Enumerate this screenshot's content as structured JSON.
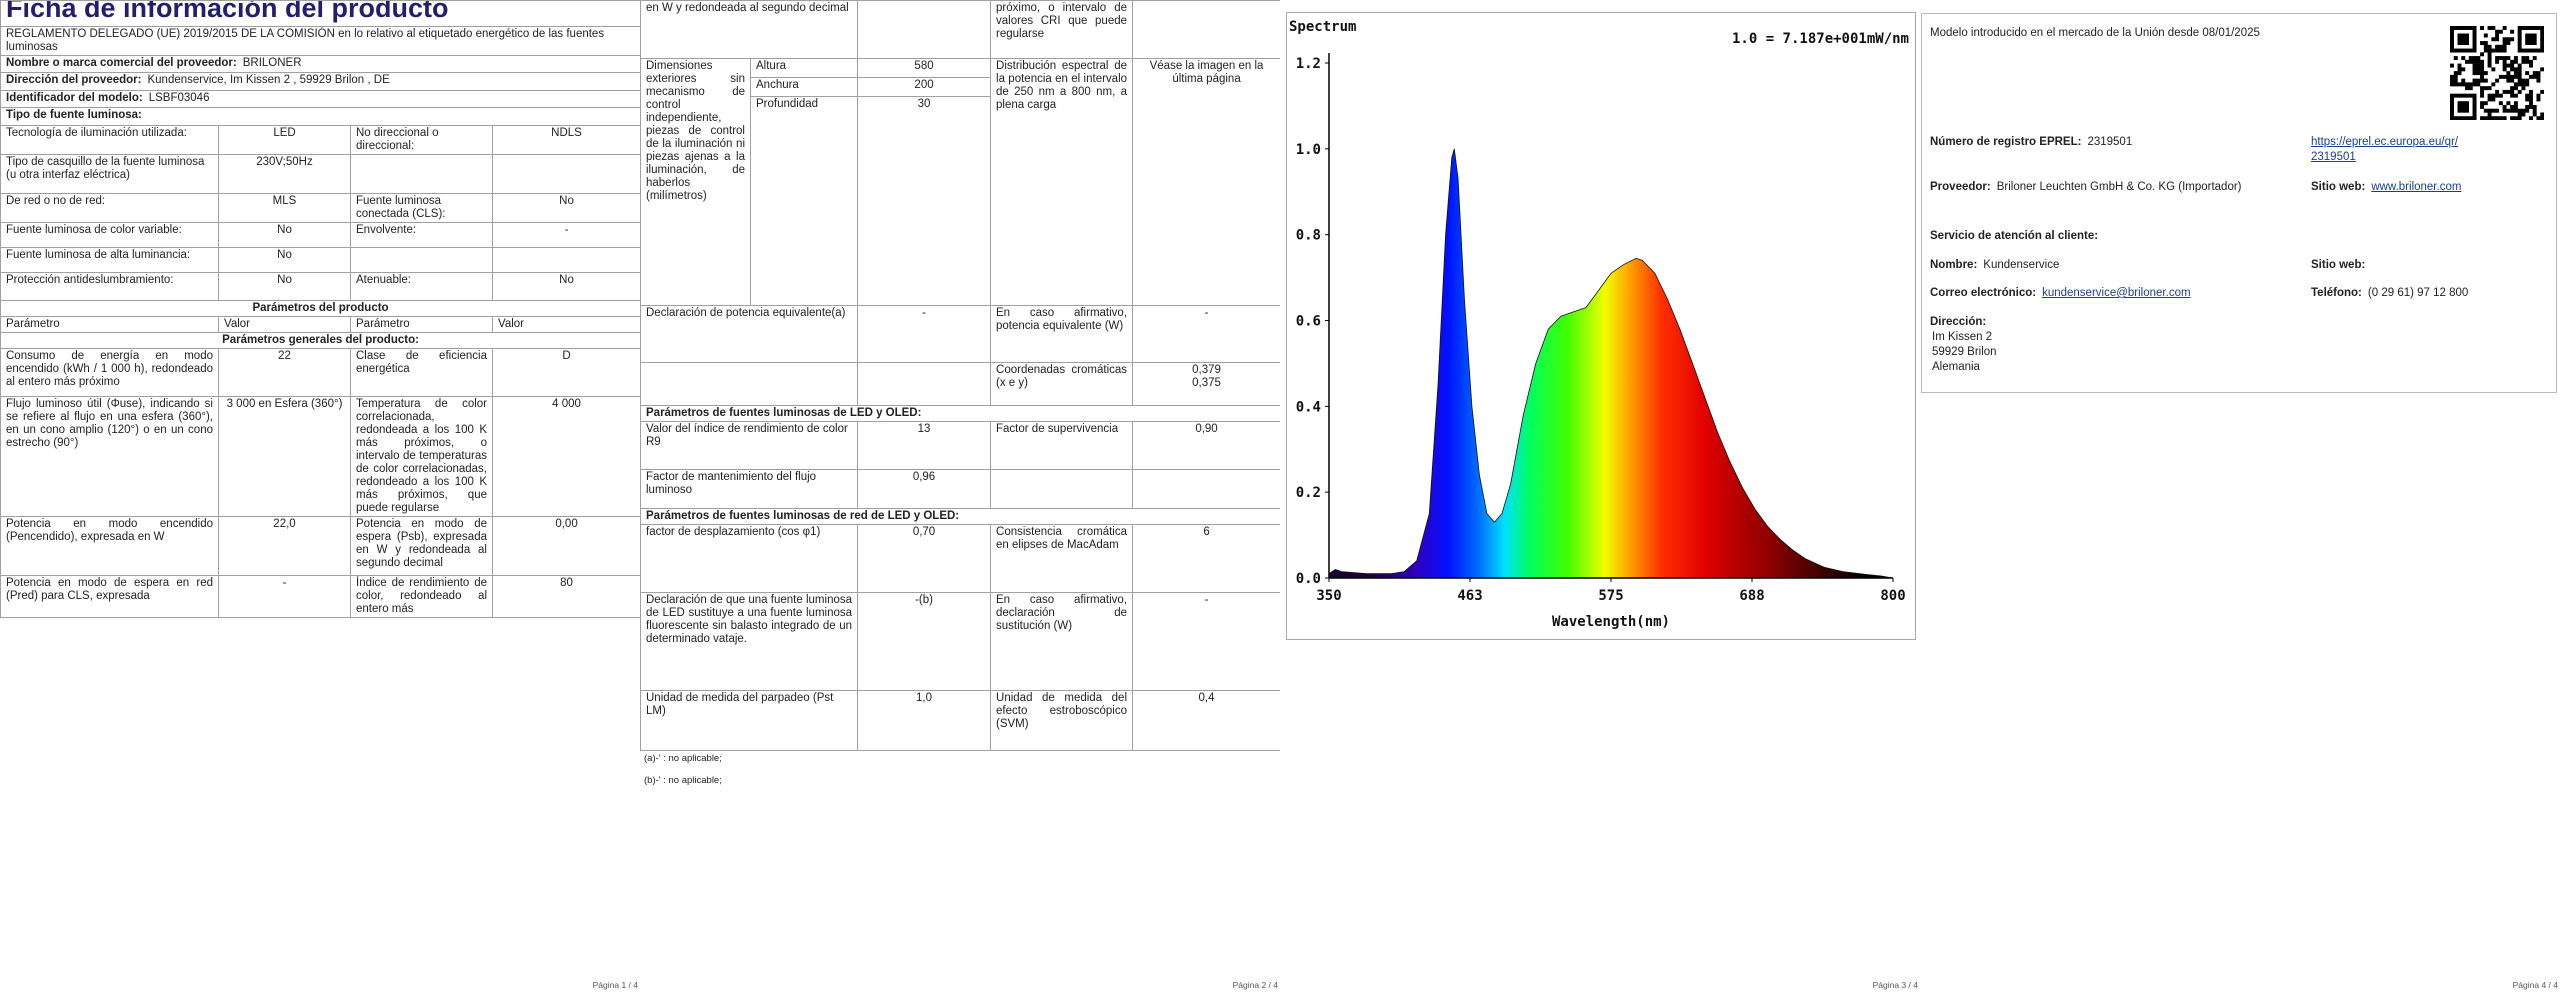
{
  "page1": {
    "title": "Ficha de información del producto",
    "regulation": "REGLAMENTO DELEGADO (UE) 2019/2015 DE LA COMISIÓN en lo relativo al etiquetado energético de las fuentes luminosas",
    "supplier": {
      "label": "Nombre o marca comercial del proveedor:",
      "value": "BRILONER"
    },
    "address": {
      "label": "Dirección del proveedor:",
      "value": "Kundenservice, Im Kissen 2 , 59929 Brilon , DE"
    },
    "model": {
      "label": "Identificador del modelo:",
      "value": "LSBF03046"
    },
    "source_type": "Tipo de fuente luminosa:",
    "source_rows": [
      [
        "Tecnología de iluminación utilizada:",
        "LED",
        "No direccional o direccional:",
        "NDLS"
      ],
      [
        "Tipo de casquillo de la fuente luminosa (u otra interfaz eléctrica)",
        "230V;50Hz"
      ],
      [
        "De red o no de red:",
        "MLS",
        "Fuente luminosa conectada (CLS):",
        "No"
      ],
      [
        "Fuente luminosa de color variable:",
        "No",
        "Envolvente:",
        "-"
      ],
      [
        "Fuente luminosa de alta luminancia:",
        "No"
      ],
      [
        "Protección antideslumbramiento:",
        "No",
        "Atenuable:",
        "No"
      ]
    ],
    "product_params": "Parámetros del producto",
    "header": [
      "Parámetro",
      "Valor",
      "Parámetro",
      "Valor"
    ],
    "general_params": "Parámetros generales del producto:",
    "param_rows": [
      [
        "Consumo de energía en modo encendido (kWh / 1 000 h), redondeado al entero más próximo",
        "22",
        "Clase de eficiencia energética",
        "D"
      ],
      [
        "Flujo luminoso útil (Φuse), indicando si se refiere al flujo en una esfera (360°), en un cono amplio (120°) o en un cono estrecho (90°)",
        "3 000 en Esfera (360°)",
        "Temperatura de color correlacionada, redondeada a los 100 K más próximos, o intervalo de temperaturas de color correlacionadas, redondeado a los 100 K más próximos, que puede regularse",
        "4 000"
      ],
      [
        "Potencia en modo encendido (Pencendido), expresada en W",
        "22,0",
        "Potencia en modo de espera (Psb), expresada en W y redondeada al segundo decimal",
        "0,00"
      ],
      [
        "Potencia en modo de espera en red (Pred) para CLS, expresada",
        "-",
        "Índice de rendimiento de color, redondeado al entero más",
        "80"
      ]
    ],
    "footer": "Página 1 / 4"
  },
  "page2": {
    "continued": [
      "en W y redondeada al segundo decimal",
      "próximo, o intervalo de valores CRI que puede regularse"
    ],
    "dimensions": {
      "label": "Dimensiones exteriores sin mecanismo de control independiente, piezas de control de la iluminación ni piezas ajenas a la iluminación, de haberlos (milímetros)",
      "items": [
        {
          "label": "Altura",
          "value": "580"
        },
        {
          "label": "Anchura",
          "value": "200"
        },
        {
          "label": "Profundidad",
          "value": "30"
        }
      ]
    },
    "spectral": {
      "label": "Distribución espectral de la potencia en el intervalo de 250 nm a 800 nm, a plena carga",
      "value": "Véase la imagen en la última página"
    },
    "equivalent": [
      "Declaración de potencia equivalente(a)",
      "-",
      "En caso afirmativo, potencia equivalente (W)",
      "-"
    ],
    "chromaticity": {
      "label": "Coordenadas cromáticas (x e y)",
      "values": [
        "0,379",
        "0,375"
      ]
    },
    "led": {
      "title": "Parámetros de fuentes luminosas de LED y OLED:",
      "rows": [
        [
          "Valor del índice de rendimiento de color R9",
          "13",
          "Factor de supervivencia",
          "0,90"
        ],
        [
          "Factor de mantenimiento del flujo luminoso",
          "0,96"
        ]
      ]
    },
    "mains": {
      "title": "Parámetros de fuentes luminosas de red de LED y OLED:",
      "rows": [
        [
          "factor de desplazamiento (cos φ1)",
          "0,70",
          "Consistencia cromática en elipses de MacAdam",
          "6"
        ],
        [
          "Declaración de que una fuente luminosa de LED sustituye a una fuente luminosa fluorescente sin balasto integrado de un determinado vataje.",
          "-(b)",
          "En caso afirmativo, declaración de sustitución (W)",
          "-"
        ],
        [
          "Unidad de medida del parpadeo (Pst LM)",
          "1,0",
          "Unidad de medida del efecto estroboscópico (SVM)",
          "0,4"
        ]
      ]
    },
    "notes": [
      "(a)-' : no aplicable;",
      "(b)-' : no aplicable;"
    ],
    "footer": "Página 2 / 4"
  },
  "page3": {
    "spectrum": {
      "title": "Spectrum",
      "scale": "1.0 = 7.187e+001mW/nm",
      "yticks": [
        "1.2",
        "1.0",
        "0.8",
        "0.6",
        "0.4",
        "0.2",
        "0.0"
      ],
      "xticks": [
        "350",
        "463",
        "575",
        "688",
        "800"
      ],
      "xlabel": "Wavelength(nm)"
    },
    "footer": "Página 3 / 4"
  },
  "page4": {
    "intro": "Modelo introducido en el mercado de la Unión desde 08/01/2025",
    "eprel": {
      "label": "Número de registro EPREL:",
      "value": "2319501",
      "link": "https://eprel.ec.europa.eu/qr/2319501"
    },
    "supplier": {
      "label": "Proveedor:",
      "value": "Briloner Leuchten GmbH & Co. KG  (Importador)"
    },
    "website": {
      "label": "Sitio web:",
      "value": "www.briloner.com"
    },
    "service": "Servicio de atención al cliente:",
    "name": {
      "label": "Nombre:",
      "value": "Kundenservice"
    },
    "website2": "Sitio web:",
    "email": {
      "label": "Correo electrónico:",
      "value": "kundenservice@briloner.com"
    },
    "phone": {
      "label": "Teléfono:",
      "value": "(0 29 61) 97 12 800"
    },
    "address": {
      "label": "Dirección:",
      "lines": [
        "Im Kissen 2",
        "59929 Brilon",
        "Alemania"
      ]
    },
    "footer": "Página 4 / 4"
  }
}
